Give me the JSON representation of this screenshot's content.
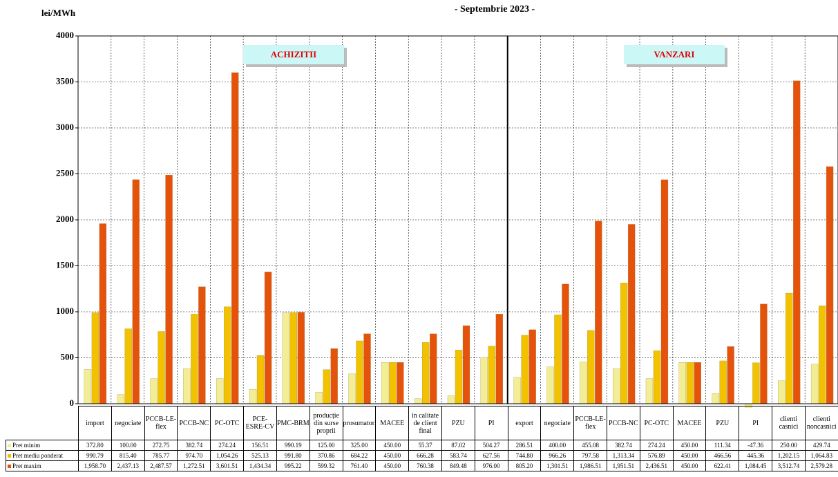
{
  "chart_data": {
    "type": "bar",
    "subtitle": "- Septembrie 2023 -",
    "y_label": "lei/MWh",
    "annotations": [
      "ACHIZITII",
      "VANZARI"
    ],
    "categories": [
      "import",
      "negociate",
      "PCCB-LE-flex",
      "PCCB-NC",
      "PC-OTC",
      "PCE-ESRE-CV",
      "PMC-BRM",
      "producție din surse proprii",
      "prosumatori",
      "MACEE",
      "in calitate de client final",
      "PZU",
      "PI",
      "export",
      "negociate",
      "PCCB-LE-flex",
      "PCCB-NC",
      "PC-OTC",
      "MACEE",
      "PZU",
      "PI",
      "clienti casnici",
      "clienti noncasnici"
    ],
    "ylim": [
      0,
      4000
    ],
    "yticks": [
      0,
      500,
      1000,
      1500,
      2000,
      2500,
      3000,
      3500,
      4000
    ],
    "grid": true,
    "series": [
      {
        "name": "Pret minim",
        "color": "#f3ee95",
        "values": [
          372.8,
          100,
          272.75,
          382.74,
          274.24,
          156.51,
          990.19,
          125,
          325,
          450,
          55.37,
          87.02,
          504.27,
          286.51,
          400,
          455.08,
          382.74,
          274.24,
          450,
          111.34,
          -47.36,
          250,
          429.74
        ],
        "value_labels": [
          "372.80",
          "100.00",
          "272.75",
          "382.74",
          "274.24",
          "156.51",
          "990.19",
          "125.00",
          "325.00",
          "450.00",
          "55.37",
          "87.02",
          "504.27",
          "286.51",
          "400.00",
          "455.08",
          "382.74",
          "274.24",
          "450.00",
          "111.34",
          "-47.36",
          "250.00",
          "429.74"
        ]
      },
      {
        "name": "Pret mediu ponderat",
        "color": "#f2c200",
        "values": [
          990.79,
          815.4,
          785.77,
          974.7,
          1054.26,
          525.13,
          991.8,
          370.86,
          684.22,
          450,
          666.28,
          583.74,
          627.56,
          744.8,
          966.26,
          797.58,
          1313.34,
          576.89,
          450,
          466.56,
          445.36,
          1202.15,
          1064.83
        ],
        "value_labels": [
          "990.79",
          "815.40",
          "785.77",
          "974.70",
          "1,054.26",
          "525.13",
          "991.80",
          "370.86",
          "684.22",
          "450.00",
          "666.28",
          "583.74",
          "627.56",
          "744.80",
          "966.26",
          "797.58",
          "1,313.34",
          "576.89",
          "450.00",
          "466.56",
          "445.36",
          "1,202.15",
          "1,064.83"
        ]
      },
      {
        "name": "Pret maxim",
        "color": "#e4520c",
        "values": [
          1958.7,
          2437.13,
          2487.57,
          1272.51,
          3601.51,
          1434.34,
          995.22,
          599.32,
          761.4,
          450,
          760.38,
          849.48,
          976,
          805.2,
          1301.51,
          1986.51,
          1951.51,
          2436.51,
          450,
          622.41,
          1084.45,
          3512.74,
          2579.28
        ],
        "value_labels": [
          "1,958.70",
          "2,437.13",
          "2,487.57",
          "1,272.51",
          "3,601.51",
          "1,434.34",
          "995.22",
          "599.32",
          "761.40",
          "450.00",
          "760.38",
          "849.48",
          "976.00",
          "805.20",
          "1,301.51",
          "1,986.51",
          "1,951.51",
          "2,436.51",
          "450.00",
          "622.41",
          "1,084.45",
          "3,512.74",
          "2,579.28"
        ]
      }
    ]
  }
}
